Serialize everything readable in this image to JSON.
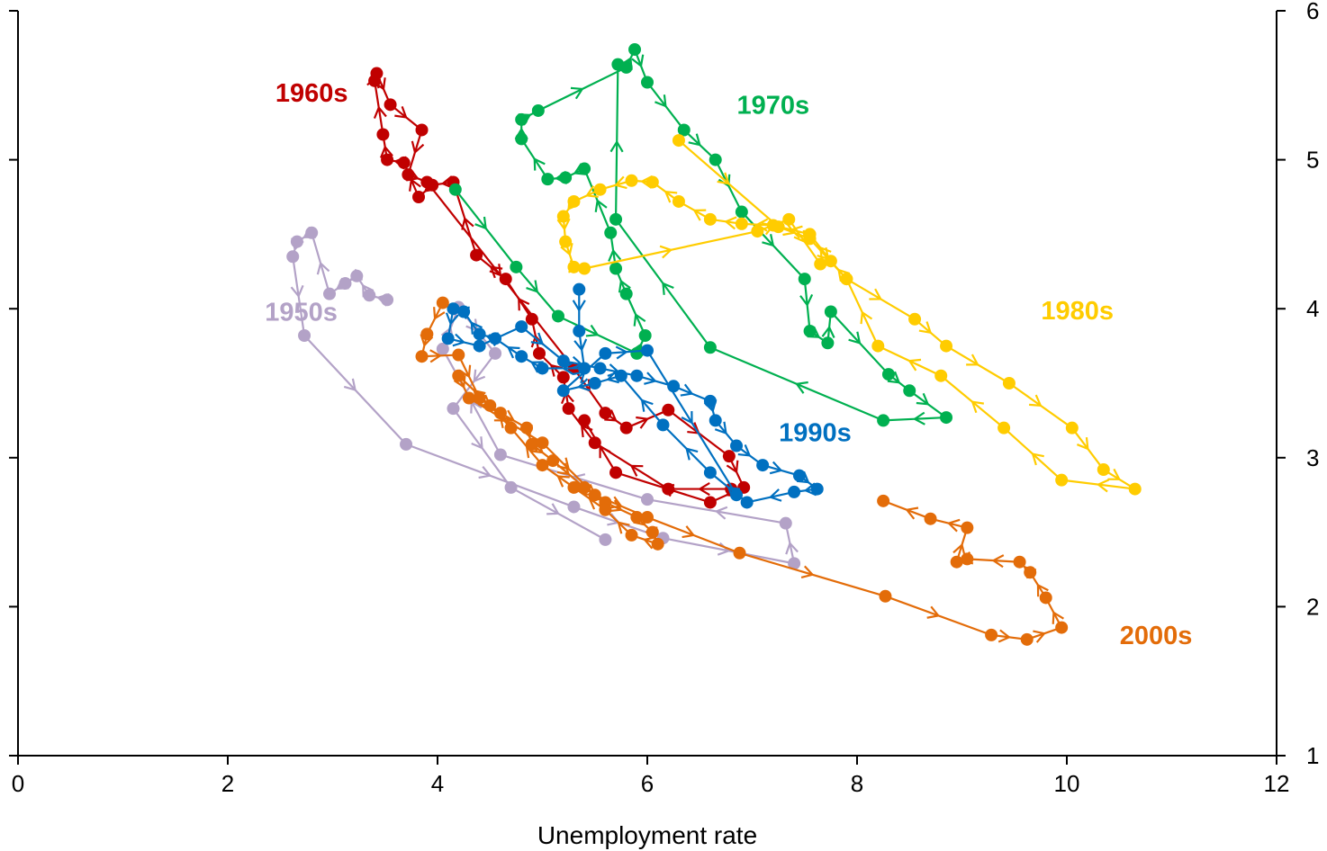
{
  "chart_data": {
    "type": "line",
    "title": "",
    "xlabel": "Unemployment rate",
    "ylabel": "",
    "xlim": [
      0,
      12
    ],
    "ylim": [
      1,
      6
    ],
    "xticks": [
      0,
      2,
      4,
      6,
      8,
      10,
      12
    ],
    "yticks": [
      1,
      2,
      3,
      4,
      5,
      6
    ],
    "y_axis_side": "right",
    "grid": false,
    "legend": "none",
    "markers": "circle with direction arrows",
    "series": [
      {
        "name": "1950s",
        "color": "#b3a2c7",
        "points": [
          [
            3.52,
            4.06
          ],
          [
            3.35,
            4.09
          ],
          [
            3.23,
            4.22
          ],
          [
            3.12,
            4.17
          ],
          [
            2.97,
            4.1
          ],
          [
            2.8,
            4.51
          ],
          [
            2.66,
            4.45
          ],
          [
            2.62,
            4.35
          ],
          [
            2.73,
            3.82
          ],
          [
            3.7,
            3.09
          ],
          [
            5.3,
            2.67
          ],
          [
            6.15,
            2.46
          ],
          [
            7.4,
            2.29
          ],
          [
            7.32,
            2.56
          ],
          [
            6.0,
            2.72
          ],
          [
            4.6,
            3.02
          ],
          [
            4.05,
            3.73
          ],
          [
            4.2,
            4.01
          ],
          [
            4.55,
            3.7
          ],
          [
            4.15,
            3.33
          ],
          [
            4.7,
            2.8
          ],
          [
            5.6,
            2.45
          ]
        ]
      },
      {
        "name": "1960s",
        "color": "#c00000",
        "points": [
          [
            6.8,
            2.79
          ],
          [
            6.2,
            2.79
          ],
          [
            5.5,
            3.1
          ],
          [
            5.25,
            3.33
          ],
          [
            5.2,
            3.54
          ],
          [
            4.97,
            3.7
          ],
          [
            4.9,
            3.93
          ],
          [
            4.65,
            4.2
          ],
          [
            4.37,
            4.36
          ],
          [
            4.15,
            4.85
          ],
          [
            3.95,
            4.83
          ],
          [
            3.82,
            4.75
          ],
          [
            3.68,
            4.98
          ],
          [
            3.52,
            5.0
          ],
          [
            3.48,
            5.17
          ],
          [
            3.4,
            5.53
          ],
          [
            3.42,
            5.58
          ],
          [
            3.55,
            5.37
          ],
          [
            3.85,
            5.2
          ],
          [
            3.72,
            4.9
          ],
          [
            3.9,
            4.85
          ],
          [
            5.3,
            3.6
          ],
          [
            5.6,
            3.3
          ],
          [
            5.8,
            3.2
          ],
          [
            6.2,
            3.32
          ],
          [
            6.78,
            3.01
          ],
          [
            6.92,
            2.8
          ],
          [
            6.6,
            2.7
          ],
          [
            5.7,
            2.9
          ],
          [
            5.4,
            3.25
          ]
        ]
      },
      {
        "name": "1970s",
        "color": "#00b050",
        "points": [
          [
            4.17,
            4.8
          ],
          [
            4.75,
            4.28
          ],
          [
            5.15,
            3.95
          ],
          [
            5.9,
            3.7
          ],
          [
            5.98,
            3.82
          ],
          [
            5.8,
            4.1
          ],
          [
            5.7,
            4.27
          ],
          [
            5.65,
            4.51
          ],
          [
            5.4,
            4.94
          ],
          [
            5.22,
            4.88
          ],
          [
            5.05,
            4.87
          ],
          [
            4.8,
            5.14
          ],
          [
            4.8,
            5.27
          ],
          [
            4.96,
            5.33
          ],
          [
            5.8,
            5.62
          ],
          [
            5.88,
            5.74
          ],
          [
            6.0,
            5.52
          ],
          [
            6.35,
            5.2
          ],
          [
            6.65,
            5.0
          ],
          [
            6.9,
            4.65
          ],
          [
            7.5,
            4.2
          ],
          [
            7.55,
            3.85
          ],
          [
            7.72,
            3.77
          ],
          [
            7.75,
            3.98
          ],
          [
            8.3,
            3.56
          ],
          [
            8.5,
            3.45
          ],
          [
            8.85,
            3.27
          ],
          [
            8.25,
            3.25
          ],
          [
            6.6,
            3.74
          ],
          [
            5.7,
            4.6
          ],
          [
            5.72,
            5.64
          ]
        ]
      },
      {
        "name": "1980s",
        "color": "#ffcc00",
        "points": [
          [
            6.3,
            5.13
          ],
          [
            7.25,
            4.55
          ],
          [
            7.55,
            4.47
          ],
          [
            7.9,
            4.2
          ],
          [
            8.55,
            3.93
          ],
          [
            8.85,
            3.75
          ],
          [
            9.45,
            3.5
          ],
          [
            10.05,
            3.2
          ],
          [
            10.35,
            2.92
          ],
          [
            10.65,
            2.79
          ],
          [
            9.95,
            2.85
          ],
          [
            9.4,
            3.2
          ],
          [
            8.8,
            3.55
          ],
          [
            8.2,
            3.75
          ],
          [
            7.9,
            4.2
          ],
          [
            7.75,
            4.32
          ],
          [
            7.55,
            4.5
          ],
          [
            7.2,
            4.56
          ],
          [
            6.9,
            4.57
          ],
          [
            6.6,
            4.6
          ],
          [
            6.3,
            4.72
          ],
          [
            6.05,
            4.85
          ],
          [
            5.85,
            4.86
          ],
          [
            5.55,
            4.8
          ],
          [
            5.3,
            4.72
          ],
          [
            5.2,
            4.62
          ],
          [
            5.22,
            4.45
          ],
          [
            5.3,
            4.28
          ],
          [
            5.4,
            4.27
          ],
          [
            7.05,
            4.52
          ],
          [
            7.35,
            4.6
          ],
          [
            7.65,
            4.3
          ]
        ]
      },
      {
        "name": "1990s",
        "color": "#0070c0",
        "points": [
          [
            5.35,
            4.13
          ],
          [
            5.35,
            3.85
          ],
          [
            5.4,
            3.6
          ],
          [
            5.0,
            3.6
          ],
          [
            4.8,
            3.68
          ],
          [
            4.55,
            3.8
          ],
          [
            4.4,
            3.83
          ],
          [
            4.25,
            3.98
          ],
          [
            4.15,
            4.0
          ],
          [
            4.1,
            3.8
          ],
          [
            4.4,
            3.75
          ],
          [
            4.8,
            3.88
          ],
          [
            5.2,
            3.65
          ],
          [
            5.55,
            3.6
          ],
          [
            5.9,
            3.55
          ],
          [
            6.25,
            3.48
          ],
          [
            6.6,
            3.38
          ],
          [
            6.65,
            3.25
          ],
          [
            6.85,
            3.08
          ],
          [
            7.1,
            2.95
          ],
          [
            7.45,
            2.88
          ],
          [
            7.62,
            2.79
          ],
          [
            7.4,
            2.77
          ],
          [
            6.95,
            2.7
          ],
          [
            6.6,
            2.9
          ],
          [
            6.15,
            3.22
          ],
          [
            5.75,
            3.55
          ],
          [
            5.5,
            3.5
          ],
          [
            5.2,
            3.45
          ],
          [
            5.6,
            3.7
          ],
          [
            6.0,
            3.72
          ],
          [
            6.85,
            2.75
          ]
        ]
      },
      {
        "name": "2000s",
        "color": "#e36c09",
        "points": [
          [
            4.05,
            4.04
          ],
          [
            3.9,
            3.83
          ],
          [
            3.85,
            3.68
          ],
          [
            4.2,
            3.69
          ],
          [
            4.4,
            3.4
          ],
          [
            4.6,
            3.3
          ],
          [
            4.85,
            3.2
          ],
          [
            4.9,
            3.09
          ],
          [
            5.1,
            2.98
          ],
          [
            5.4,
            2.8
          ],
          [
            5.6,
            2.7
          ],
          [
            5.9,
            2.6
          ],
          [
            6.05,
            2.5
          ],
          [
            6.1,
            2.42
          ],
          [
            5.85,
            2.48
          ],
          [
            5.6,
            2.65
          ],
          [
            5.3,
            2.8
          ],
          [
            5.0,
            2.95
          ],
          [
            4.7,
            3.2
          ],
          [
            4.5,
            3.35
          ],
          [
            4.2,
            3.55
          ],
          [
            4.3,
            3.4
          ],
          [
            5.0,
            3.1
          ],
          [
            5.5,
            2.75
          ],
          [
            6.0,
            2.6
          ],
          [
            6.88,
            2.36
          ],
          [
            8.27,
            2.07
          ],
          [
            9.28,
            1.81
          ],
          [
            9.62,
            1.78
          ],
          [
            9.95,
            1.86
          ],
          [
            9.8,
            2.06
          ],
          [
            9.65,
            2.23
          ],
          [
            9.55,
            2.3
          ],
          [
            9.05,
            2.32
          ],
          [
            8.95,
            2.3
          ],
          [
            9.05,
            2.53
          ],
          [
            8.7,
            2.59
          ],
          [
            8.25,
            2.71
          ]
        ]
      }
    ],
    "annotations": [
      {
        "text": "1950s",
        "series": "1950s",
        "x": 2.7,
        "y": 3.98
      },
      {
        "text": "1960s",
        "series": "1960s",
        "x": 2.8,
        "y": 5.45
      },
      {
        "text": "1970s",
        "series": "1970s",
        "x": 7.2,
        "y": 5.37
      },
      {
        "text": "1980s",
        "series": "1980s",
        "x": 10.1,
        "y": 3.99
      },
      {
        "text": "1990s",
        "series": "1990s",
        "x": 7.6,
        "y": 3.17
      },
      {
        "text": "2000s",
        "series": "2000s",
        "x": 10.85,
        "y": 1.81
      }
    ]
  }
}
